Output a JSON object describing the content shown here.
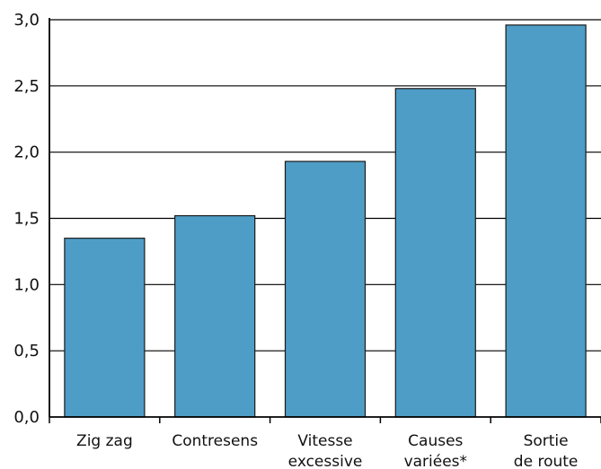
{
  "chart_data": {
    "type": "bar",
    "categories": [
      [
        "Zig zag"
      ],
      [
        "Contresens"
      ],
      [
        "Vitesse",
        "excessive"
      ],
      [
        "Causes",
        "variées*"
      ],
      [
        "Sortie",
        "de route"
      ]
    ],
    "values": [
      1.35,
      1.52,
      1.93,
      2.48,
      2.96
    ],
    "y_ticks": [
      "0,0",
      "0,5",
      "1,0",
      "1,5",
      "2,0",
      "2,5",
      "3,0"
    ],
    "ylim": [
      0,
      3.0
    ],
    "grid": true,
    "colors": {
      "bar": "#4e9dc6",
      "bar_stroke": "#1a1a1a",
      "grid": "#000000",
      "axis": "#000000"
    }
  }
}
